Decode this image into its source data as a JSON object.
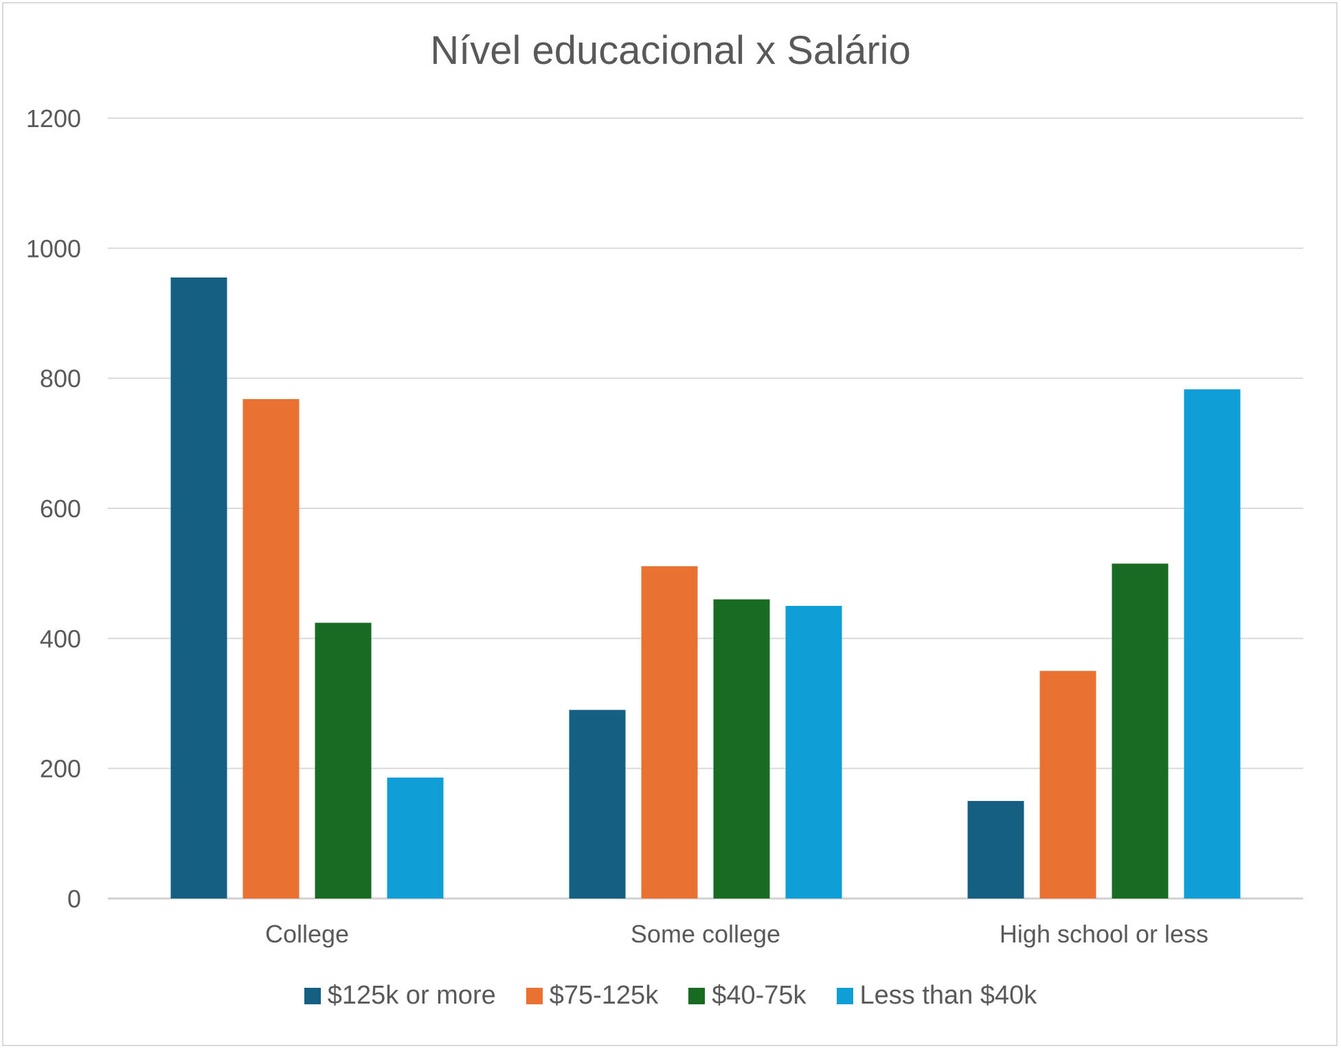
{
  "chart_data": {
    "type": "bar",
    "title": "Nível educacional x Salário",
    "xlabel": "",
    "ylabel": "",
    "ylim": [
      0,
      1200
    ],
    "yticks": [
      0,
      200,
      400,
      600,
      800,
      1000,
      1200
    ],
    "grid": true,
    "legend_position": "bottom",
    "categories": [
      "College",
      "Some college",
      "High school or less"
    ],
    "series": [
      {
        "name": "$125k or more",
        "color": "#156082",
        "values": [
          955,
          290,
          150
        ]
      },
      {
        "name": "$75-125k",
        "color": "#E97132",
        "values": [
          768,
          511,
          350
        ]
      },
      {
        "name": "$40-75k",
        "color": "#196B24",
        "values": [
          424,
          460,
          515
        ]
      },
      {
        "name": "Less than $40k",
        "color": "#0F9ED5",
        "values": [
          186,
          450,
          783
        ]
      }
    ]
  }
}
